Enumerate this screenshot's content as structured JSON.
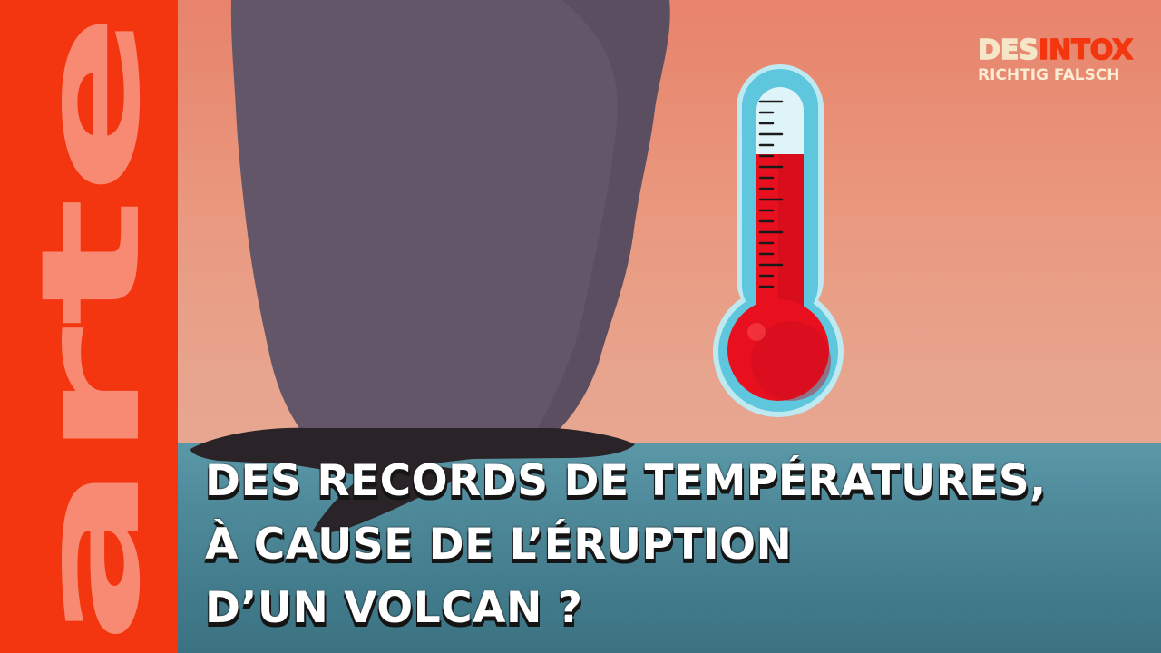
{
  "brand": {
    "logo_text": "arte",
    "desintox_prefix": "DES",
    "desintox_accent": "INTOX",
    "subtitle": "RICHTIG FALSCH",
    "color_primary": "#f3360f",
    "color_cream": "#f6e6c8"
  },
  "headline": {
    "lines": [
      "DES RECORDS DE TEMPÉRATURES,",
      "À CAUSE DE L’ÉRUPTION",
      "D’UN VOLCAN ?"
    ]
  },
  "illustration": {
    "icons": [
      "volcanic-plume-icon",
      "thermometer-icon"
    ],
    "thermometer_level": 0.62,
    "colors": {
      "sky": "#e8836c",
      "sea": "#4f8a9b",
      "plume": "#625668",
      "mercury": "#e8101f",
      "tube": "#5ec6dd"
    }
  }
}
